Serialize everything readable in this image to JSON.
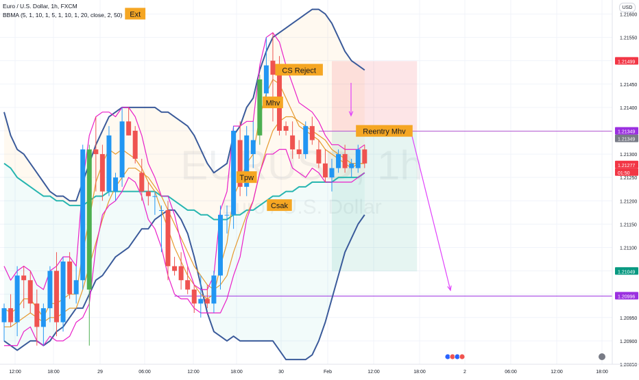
{
  "header": {
    "title": "Euro / U.S. Dollar, 1h, FXCM",
    "indicator": "BBMA (5, 1, 10, 1, 5, 1, 10, 1, 20, close, 2, 50)",
    "currency": "USD",
    "watermark_top": "EURUSD, 1h",
    "watermark_bottom": "Euro / U.S. Dollar"
  },
  "colors": {
    "bull": "#2196f3",
    "bear": "#ef5350",
    "extreme_bull": "#4caf50",
    "bb_outer": "#3a5a9a",
    "bb_inner": "#e91ec8",
    "ma_orange": "#e69a2e",
    "ema50": "#26b5b0",
    "label_bg": "#f5a623",
    "target_line": "#9b30e0",
    "reentry_line": "#b455d0",
    "stop_zone": "rgba(242,54,69,0.13)",
    "target_zone": "rgba(8,153,129,0.10)"
  },
  "chart_data": {
    "type": "candlestick",
    "title": "Euro / U.S. Dollar, 1h, FXCM",
    "ylim": [
      1.2085,
      1.2163
    ],
    "y_ticks": [
      "1.21600",
      "1.21550",
      "1.21500",
      "1.21450",
      "1.21400",
      "1.21350",
      "1.21300",
      "1.21250",
      "1.21200",
      "1.21150",
      "1.21100",
      "1.21050",
      "1.21000",
      "1.20950",
      "1.20900",
      "1.20850"
    ],
    "x_ticks": [
      "12:00",
      "18:00",
      "29",
      "06:00",
      "12:00",
      "18:00",
      "30",
      "Feb",
      "12:00",
      "18:00",
      "2",
      "06:00",
      "12:00",
      "18:00"
    ],
    "candles": [
      {
        "o": 1.2094,
        "h": 1.2098,
        "l": 1.209,
        "c": 1.2097
      },
      {
        "o": 1.2097,
        "h": 1.21,
        "l": 1.2093,
        "c": 1.2094
      },
      {
        "o": 1.2094,
        "h": 1.2106,
        "l": 1.2091,
        "c": 1.2104
      },
      {
        "o": 1.2104,
        "h": 1.2106,
        "l": 1.2097,
        "c": 1.2103
      },
      {
        "o": 1.2103,
        "h": 1.2105,
        "l": 1.2096,
        "c": 1.2098
      },
      {
        "o": 1.2098,
        "h": 1.2101,
        "l": 1.2089,
        "c": 1.2093
      },
      {
        "o": 1.2093,
        "h": 1.2098,
        "l": 1.2089,
        "c": 1.2097
      },
      {
        "o": 1.2097,
        "h": 1.2106,
        "l": 1.2094,
        "c": 1.2105
      },
      {
        "o": 1.2105,
        "h": 1.2109,
        "l": 1.2091,
        "c": 1.2094
      },
      {
        "o": 1.2094,
        "h": 1.2108,
        "l": 1.2092,
        "c": 1.2107
      },
      {
        "o": 1.2107,
        "h": 1.2109,
        "l": 1.2099,
        "c": 1.21
      },
      {
        "o": 1.21,
        "h": 1.2106,
        "l": 1.2098,
        "c": 1.2103
      },
      {
        "o": 1.2103,
        "h": 1.2132,
        "l": 1.2101,
        "c": 1.2131
      },
      {
        "o": 1.2101,
        "h": 1.2132,
        "l": 1.2089,
        "c": 1.2131,
        "x": true
      },
      {
        "o": 1.2131,
        "h": 1.2138,
        "l": 1.2122,
        "c": 1.213
      },
      {
        "o": 1.213,
        "h": 1.2132,
        "l": 1.212,
        "c": 1.2122
      },
      {
        "o": 1.2122,
        "h": 1.2136,
        "l": 1.2121,
        "c": 1.2134
      },
      {
        "o": 1.2122,
        "h": 1.2126,
        "l": 1.212,
        "c": 1.2125
      },
      {
        "o": 1.2125,
        "h": 1.214,
        "l": 1.2123,
        "c": 1.2137
      },
      {
        "o": 1.2137,
        "h": 1.214,
        "l": 1.2134,
        "c": 1.2134
      },
      {
        "o": 1.2135,
        "h": 1.2136,
        "l": 1.2128,
        "c": 1.2129
      },
      {
        "o": 1.2126,
        "h": 1.2129,
        "l": 1.212,
        "c": 1.2122
      },
      {
        "o": 1.2122,
        "h": 1.2124,
        "l": 1.2119,
        "c": 1.2121
      },
      {
        "o": 1.2121,
        "h": 1.2122,
        "l": 1.2117,
        "c": 1.2121
      },
      {
        "o": 1.2118,
        "h": 1.2119,
        "l": 1.2109,
        "c": 1.2118
      },
      {
        "o": 1.2118,
        "h": 1.212,
        "l": 1.2103,
        "c": 1.2106
      },
      {
        "o": 1.2106,
        "h": 1.2108,
        "l": 1.2104,
        "c": 1.2105
      },
      {
        "o": 1.2106,
        "h": 1.2109,
        "l": 1.2101,
        "c": 1.2103
      },
      {
        "o": 1.2103,
        "h": 1.2106,
        "l": 1.21,
        "c": 1.2101
      },
      {
        "o": 1.2101,
        "h": 1.2102,
        "l": 1.2096,
        "c": 1.2098
      },
      {
        "o": 1.2098,
        "h": 1.2104,
        "l": 1.2095,
        "c": 1.2099
      },
      {
        "o": 1.2099,
        "h": 1.2102,
        "l": 1.2097,
        "c": 1.2098
      },
      {
        "o": 1.2098,
        "h": 1.2105,
        "l": 1.2096,
        "c": 1.2104
      },
      {
        "o": 1.2104,
        "h": 1.2119,
        "l": 1.2101,
        "c": 1.2117
      },
      {
        "o": 1.2117,
        "h": 1.2119,
        "l": 1.2113,
        "c": 1.2117
      },
      {
        "o": 1.2117,
        "h": 1.2136,
        "l": 1.2114,
        "c": 1.2135
      },
      {
        "o": 1.2133,
        "h": 1.2137,
        "l": 1.2121,
        "c": 1.2123
      },
      {
        "o": 1.2123,
        "h": 1.2136,
        "l": 1.2121,
        "c": 1.2134
      },
      {
        "o": 1.213,
        "h": 1.2137,
        "l": 1.2127,
        "c": 1.2133
      },
      {
        "o": 1.2134,
        "h": 1.2147,
        "l": 1.2132,
        "c": 1.2146,
        "x": true
      },
      {
        "o": 1.2143,
        "h": 1.2155,
        "l": 1.214,
        "c": 1.2149
      },
      {
        "o": 1.215,
        "h": 1.2156,
        "l": 1.2137,
        "c": 1.2147
      },
      {
        "o": 1.2149,
        "h": 1.2151,
        "l": 1.2134,
        "c": 1.2135
      },
      {
        "o": 1.2136,
        "h": 1.2137,
        "l": 1.2134,
        "c": 1.2135
      },
      {
        "o": 1.2134,
        "h": 1.2137,
        "l": 1.2129,
        "c": 1.2131
      },
      {
        "o": 1.2131,
        "h": 1.2133,
        "l": 1.2129,
        "c": 1.213
      },
      {
        "o": 1.213,
        "h": 1.2137,
        "l": 1.2129,
        "c": 1.2136
      },
      {
        "o": 1.2136,
        "h": 1.2138,
        "l": 1.2132,
        "c": 1.2133
      },
      {
        "o": 1.2131,
        "h": 1.2133,
        "l": 1.2127,
        "c": 1.2128
      },
      {
        "o": 1.2128,
        "h": 1.2131,
        "l": 1.2124,
        "c": 1.2125
      },
      {
        "o": 1.2125,
        "h": 1.2129,
        "l": 1.2122,
        "c": 1.2127
      },
      {
        "o": 1.2127,
        "h": 1.2131,
        "l": 1.2126,
        "c": 1.213
      },
      {
        "o": 1.213,
        "h": 1.2132,
        "l": 1.2126,
        "c": 1.2127
      },
      {
        "o": 1.2127,
        "h": 1.2129,
        "l": 1.2125,
        "c": 1.2128
      },
      {
        "o": 1.2127,
        "h": 1.2132,
        "l": 1.2126,
        "c": 1.2131
      },
      {
        "o": 1.2131,
        "h": 1.2132,
        "l": 1.2127,
        "c": 1.2128
      }
    ],
    "bb_upper": [
      1.2139,
      1.2134,
      1.2131,
      1.213,
      1.2128,
      1.2126,
      1.2124,
      1.2122,
      1.2121,
      1.2121,
      1.212,
      1.212,
      1.2124,
      1.2128,
      1.2132,
      1.2135,
      1.2138,
      1.2139,
      1.214,
      1.214,
      1.214,
      1.214,
      1.214,
      1.214,
      1.2139,
      1.2139,
      1.2138,
      1.2137,
      1.2136,
      1.2134,
      1.2131,
      1.2128,
      1.2126,
      1.2127,
      1.2128,
      1.2134,
      1.2136,
      1.214,
      1.2142,
      1.2148,
      1.2152,
      1.2155,
      1.2156,
      1.2157,
      1.2158,
      1.2159,
      1.216,
      1.2161,
      1.2161,
      1.216,
      1.2158,
      1.2155,
      1.2152,
      1.215,
      1.2149,
      1.2148
    ],
    "bb_lower": [
      1.209,
      1.2089,
      1.2088,
      1.2089,
      1.209,
      1.209,
      1.2089,
      1.209,
      1.2092,
      1.2093,
      1.2095,
      1.2097,
      1.2097,
      1.21,
      1.2103,
      1.2104,
      1.2106,
      1.2108,
      1.2109,
      1.211,
      1.2112,
      1.2114,
      1.2114,
      1.2116,
      1.2117,
      1.2118,
      1.2118,
      1.2116,
      1.2113,
      1.2108,
      1.2102,
      1.2096,
      1.2092,
      1.2091,
      1.209,
      1.2091,
      1.209,
      1.209,
      1.209,
      1.209,
      1.209,
      1.209,
      1.2088,
      1.2086,
      1.2086,
      1.2086,
      1.2086,
      1.2087,
      1.209,
      1.2094,
      1.2099,
      1.2104,
      1.2109,
      1.2112,
      1.2115,
      1.2117
    ],
    "bb_inner_upper": [
      1.2106,
      1.2103,
      1.2105,
      1.2106,
      1.2105,
      1.2102,
      1.2101,
      1.2105,
      1.2106,
      1.2108,
      1.2108,
      1.2106,
      1.2124,
      1.2134,
      1.2138,
      1.2139,
      1.2139,
      1.2138,
      1.214,
      1.214,
      1.2138,
      1.2134,
      1.2128,
      1.2125,
      1.2121,
      1.2121,
      1.2117,
      1.2111,
      1.2106,
      1.2102,
      1.2101,
      1.2101,
      1.2104,
      1.2118,
      1.2122,
      1.2136,
      1.2136,
      1.2137,
      1.2137,
      1.2149,
      1.2155,
      1.2156,
      1.2154,
      1.2149,
      1.2145,
      1.2141,
      1.214,
      1.2139,
      1.2137,
      1.2134,
      1.2132,
      1.2132,
      1.2131,
      1.2131,
      1.2131,
      1.2132
    ],
    "bb_inner_lower": [
      1.2089,
      1.2089,
      1.2089,
      1.2092,
      1.2093,
      1.209,
      1.2089,
      1.2091,
      1.209,
      1.209,
      1.2091,
      1.2094,
      1.2095,
      1.2098,
      1.211,
      1.2117,
      1.2119,
      1.212,
      1.2122,
      1.2125,
      1.2124,
      1.2121,
      1.2116,
      1.2114,
      1.211,
      1.2104,
      1.21,
      1.2099,
      1.2099,
      1.2097,
      1.2096,
      1.2096,
      1.2096,
      1.2096,
      1.2099,
      1.2104,
      1.2108,
      1.2116,
      1.212,
      1.2126,
      1.213,
      1.213,
      1.2131,
      1.2131,
      1.2127,
      1.2126,
      1.2125,
      1.2127,
      1.2126,
      1.2124,
      1.2124,
      1.2124,
      1.2124,
      1.2124,
      1.2125,
      1.2126
    ],
    "ma_orange_1": [
      1.2097,
      1.2096,
      1.2097,
      1.2099,
      1.2099,
      1.2097,
      1.2095,
      1.2098,
      1.2098,
      1.2099,
      1.21,
      1.21,
      1.2109,
      1.2116,
      1.2124,
      1.2128,
      1.2131,
      1.213,
      1.2131,
      1.213,
      1.2129,
      1.2127,
      1.2124,
      1.2122,
      1.2118,
      1.2114,
      1.211,
      1.2107,
      1.2104,
      1.2102,
      1.21,
      1.2099,
      1.21,
      1.2106,
      1.2111,
      1.2121,
      1.2124,
      1.2128,
      1.213,
      1.2138,
      1.2143,
      1.2146,
      1.2145,
      1.2142,
      1.2139,
      1.2136,
      1.2135,
      1.2134,
      1.2133,
      1.2131,
      1.213,
      1.2129,
      1.2128,
      1.2127,
      1.2128,
      1.2128
    ],
    "ma_orange_2": [
      1.2093,
      1.2093,
      1.2094,
      1.2095,
      1.2096,
      1.2095,
      1.2094,
      1.2095,
      1.2095,
      1.2096,
      1.2097,
      1.2097,
      1.2101,
      1.2106,
      1.2111,
      1.2116,
      1.212,
      1.2123,
      1.2125,
      1.2127,
      1.2127,
      1.2126,
      1.2125,
      1.2123,
      1.2121,
      1.2118,
      1.2115,
      1.2112,
      1.2109,
      1.2106,
      1.2104,
      1.2102,
      1.2101,
      1.2102,
      1.2104,
      1.2109,
      1.2113,
      1.2117,
      1.212,
      1.2126,
      1.2131,
      1.2135,
      1.2137,
      1.2138,
      1.2138,
      1.2137,
      1.2136,
      1.2135,
      1.2134,
      1.2133,
      1.2131,
      1.213,
      1.2129,
      1.2128,
      1.2128,
      1.2128
    ],
    "ema50": [
      1.2128,
      1.2127,
      1.2125,
      1.2124,
      1.2123,
      1.2122,
      1.2121,
      1.2121,
      1.212,
      1.212,
      1.2119,
      1.2119,
      1.2119,
      1.212,
      1.2121,
      1.2121,
      1.2122,
      1.2122,
      1.2122,
      1.2122,
      1.2122,
      1.2122,
      1.2122,
      1.2122,
      1.2121,
      1.2121,
      1.212,
      1.2119,
      1.2118,
      1.2118,
      1.2117,
      1.2117,
      1.2116,
      1.2116,
      1.2116,
      1.2117,
      1.2117,
      1.2118,
      1.2118,
      1.2119,
      1.212,
      1.2121,
      1.2121,
      1.2122,
      1.2122,
      1.2123,
      1.2123,
      1.2124,
      1.2124,
      1.2124,
      1.2124,
      1.2125,
      1.2125,
      1.2125,
      1.2125,
      1.2126
    ],
    "levels": [
      {
        "label": "1.21499",
        "price": 1.21499,
        "color": "#f23645"
      },
      {
        "label": "1.21349",
        "price": 1.21349,
        "color": "#9b30e0"
      },
      {
        "label": "1.21349",
        "price": 1.21349,
        "color": "#787b86",
        "offset": 1
      },
      {
        "label": "1.21277",
        "price": 1.21277,
        "color": "#f23645"
      },
      {
        "label": "01:50",
        "price": 1.21277,
        "color": "#f23645",
        "offset": 1
      },
      {
        "label": "1.21049",
        "price": 1.21049,
        "color": "#089981"
      },
      {
        "label": "1.20996",
        "price": 1.20996,
        "color": "#9b30e0"
      }
    ],
    "annotations": [
      {
        "text": "Ext",
        "price": 1.216,
        "bar": 20
      },
      {
        "text": "CS Reject",
        "price": 1.2148,
        "bar": 45
      },
      {
        "text": "Mhv",
        "price": 1.2141,
        "bar": 41
      },
      {
        "text": "Reentry Mhv",
        "price": 1.21349,
        "bar": 58
      },
      {
        "text": "Tpw",
        "price": 1.2125,
        "bar": 37
      },
      {
        "text": "Csak",
        "price": 1.2119,
        "bar": 42
      }
    ],
    "position": {
      "entry": 1.21349,
      "stop": 1.21499,
      "target": 1.21049,
      "start_bar": 50,
      "end_bar": 63
    }
  }
}
